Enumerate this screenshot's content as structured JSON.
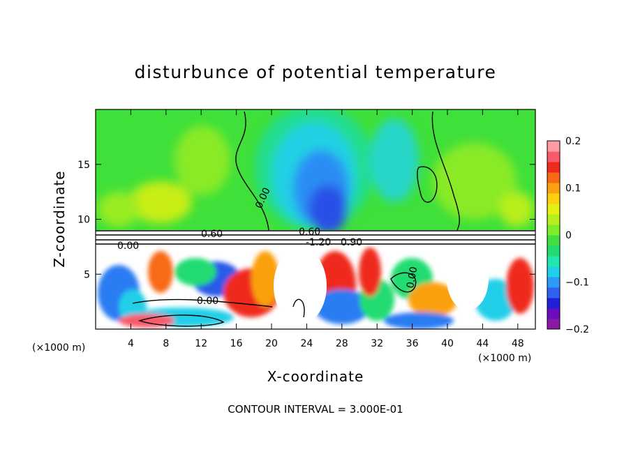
{
  "chart_data": {
    "type": "heatmap",
    "title": "disturbunce of potential temperature",
    "xlabel": "X-coordinate",
    "ylabel": "Z-coordinate",
    "x_unit": "(×1000 m)",
    "z_unit": "(×1000 m)",
    "xlim": [
      0,
      50
    ],
    "ylim": [
      0,
      20
    ],
    "xticks": [
      4,
      8,
      12,
      16,
      20,
      24,
      28,
      32,
      36,
      40,
      44,
      48
    ],
    "yticks": [
      5,
      10,
      15
    ],
    "colorbar": {
      "ticks": [
        0.2,
        0.1,
        0,
        -0.1,
        -0.2
      ],
      "tick_labels": [
        "0.2",
        "0.1",
        "0",
        "−0.1",
        "−0.2"
      ],
      "range": [
        -0.2,
        0.2
      ],
      "colors": [
        "#8a1aa6",
        "#6a0dbf",
        "#2020d8",
        "#2f62f2",
        "#2b9bf5",
        "#22cfe8",
        "#20e6b0",
        "#22dc72",
        "#40e040",
        "#7ded2a",
        "#b5f01e",
        "#e6ee14",
        "#fccf10",
        "#fba010",
        "#f76a14",
        "#ef2a1a",
        "#f75a6a",
        "#ff9aa5"
      ]
    },
    "contour_labels": [
      "0.60",
      "0.00",
      "0.60",
      "0.00",
      "0.00",
      "0.00",
      "-1.20",
      "0.90"
    ],
    "footer": "CONTOUR INTERVAL = 3.000E-01"
  }
}
